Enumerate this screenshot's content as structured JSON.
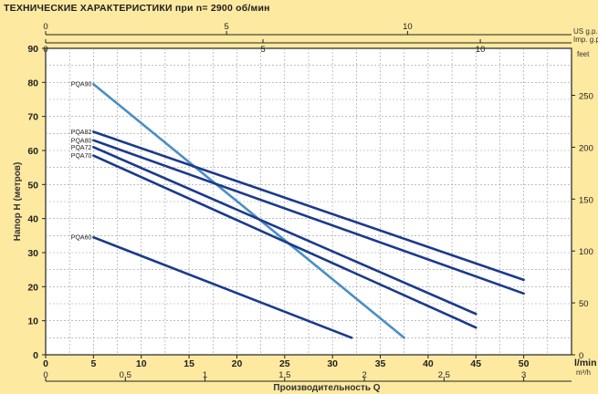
{
  "title": "ТЕХНИЧЕСКИЕ ХАРАКТЕРИСТИКИ при n= 2900 об/мин",
  "chart_data": {
    "type": "line",
    "title": "ТЕХНИЧЕСКИЕ ХАРАКТЕРИСТИКИ при n= 2900 об/мин",
    "xlabel": "Производительность Q",
    "ylabel": "Напор H  (метров)",
    "x_unit": "l/min",
    "xlim": [
      0,
      55
    ],
    "ylim": [
      0,
      90
    ],
    "grid": true,
    "x_ticks": [
      0,
      5,
      10,
      15,
      20,
      25,
      30,
      35,
      40,
      45,
      50
    ],
    "y_ticks": [
      0,
      10,
      20,
      30,
      40,
      50,
      60,
      70,
      80,
      90
    ],
    "secondary_axes": {
      "bottom_m3h": {
        "unit": "m³/h",
        "ticks": [
          "0",
          "0.5",
          "1",
          "1.5",
          "2",
          "2.5",
          "3"
        ],
        "values": [
          0,
          0.5,
          1,
          1.5,
          2,
          2.5,
          3
        ]
      },
      "top_us_gpm": {
        "unit": "US g.p.m.",
        "ticks": [
          "0",
          "5",
          "10"
        ],
        "values": [
          0,
          5,
          10
        ]
      },
      "top_imp_gpm": {
        "unit": "Imp. g.p.m.",
        "ticks": [
          "0",
          "5",
          "10"
        ],
        "values": [
          0,
          5,
          10
        ]
      },
      "right_feet": {
        "unit": "feet",
        "ticks": [
          "0",
          "50",
          "100",
          "150",
          "200",
          "250"
        ],
        "values": [
          0,
          50,
          100,
          150,
          200,
          250
        ]
      }
    },
    "series": [
      {
        "name": "PQA90",
        "color": "#4a8fc4",
        "x": [
          5,
          37.5
        ],
        "y": [
          79.5,
          5
        ]
      },
      {
        "name": "PQA82",
        "color": "#1a3a8c",
        "x": [
          5,
          50
        ],
        "y": [
          65.5,
          22
        ]
      },
      {
        "name": "PQA80",
        "color": "#1a3a8c",
        "x": [
          5,
          50
        ],
        "y": [
          63,
          18
        ]
      },
      {
        "name": "PQA72",
        "color": "#1a3a8c",
        "x": [
          5,
          45
        ],
        "y": [
          61,
          12
        ]
      },
      {
        "name": "PQA70",
        "color": "#1a3a8c",
        "x": [
          5,
          45
        ],
        "y": [
          58.5,
          8
        ]
      },
      {
        "name": "PQA60",
        "color": "#1a3a8c",
        "x": [
          5,
          32
        ],
        "y": [
          34.5,
          5
        ]
      }
    ]
  }
}
